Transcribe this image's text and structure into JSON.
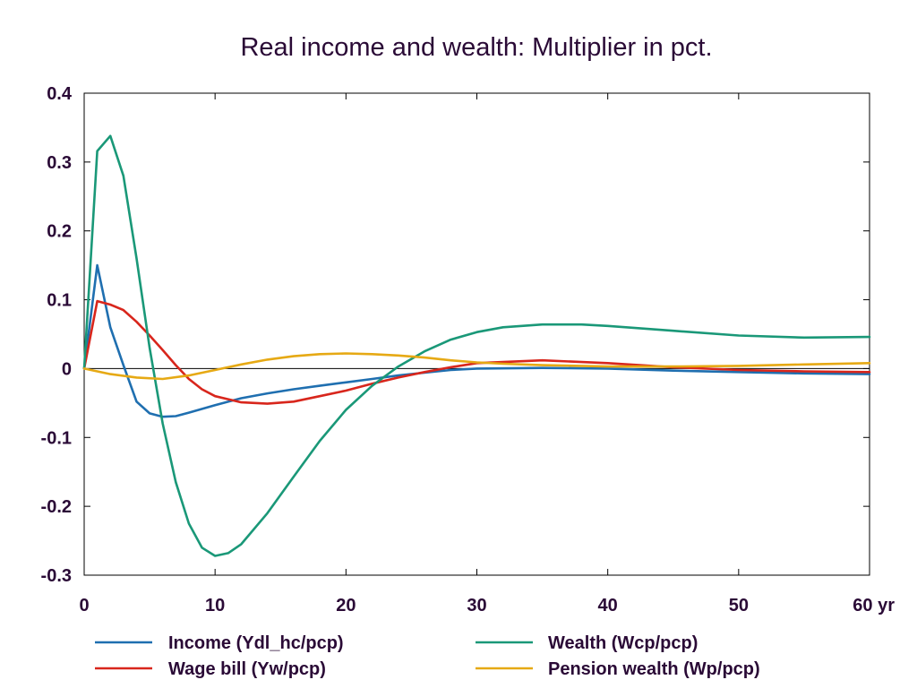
{
  "chart_data": {
    "type": "line",
    "title": "Real income and wealth: Multiplier in pct.",
    "xlabel": "",
    "ylabel": "",
    "xlim": [
      0,
      60
    ],
    "ylim": [
      -0.3,
      0.4
    ],
    "x_ticks": [
      0,
      10,
      20,
      30,
      40,
      50,
      60
    ],
    "x_tick_labels": [
      "0",
      "10",
      "20",
      "30",
      "40",
      "50",
      "60 yr"
    ],
    "y_ticks": [
      0.4,
      0.3,
      0.2,
      0.1,
      0,
      -0.1,
      -0.2,
      -0.3
    ],
    "y_tick_labels": [
      "0.4",
      "0.3",
      "0.2",
      "0.1",
      "0",
      "-0.1",
      "-0.2",
      "-0.3"
    ],
    "grid": false,
    "zero_line": true,
    "legend_position": "bottom",
    "series": [
      {
        "name": "Income (Ydl_hc/pcp)",
        "color": "#1f6fb0",
        "x": [
          0,
          1,
          2,
          3,
          4,
          5,
          6,
          7,
          8,
          10,
          12,
          14,
          16,
          18,
          20,
          22,
          24,
          26,
          28,
          30,
          35,
          40,
          45,
          50,
          55,
          60
        ],
        "y": [
          0,
          0.15,
          0.06,
          0.005,
          -0.048,
          -0.065,
          -0.07,
          -0.069,
          -0.064,
          -0.053,
          -0.043,
          -0.036,
          -0.03,
          -0.025,
          -0.02,
          -0.015,
          -0.01,
          -0.006,
          -0.002,
          0.0,
          0.001,
          0.0,
          -0.003,
          -0.005,
          -0.007,
          -0.008
        ]
      },
      {
        "name": "Wage bill (Yw/pcp)",
        "color": "#d8261c",
        "x": [
          0,
          1,
          2,
          3,
          4,
          5,
          6,
          7,
          8,
          9,
          10,
          12,
          14,
          16,
          18,
          20,
          22,
          24,
          26,
          28,
          30,
          35,
          40,
          45,
          50,
          55,
          60
        ],
        "y": [
          0,
          0.098,
          0.093,
          0.085,
          0.068,
          0.048,
          0.027,
          0.005,
          -0.015,
          -0.03,
          -0.04,
          -0.049,
          -0.051,
          -0.048,
          -0.04,
          -0.032,
          -0.022,
          -0.013,
          -0.005,
          0.002,
          0.008,
          0.012,
          0.008,
          0.002,
          -0.002,
          -0.004,
          -0.005
        ]
      },
      {
        "name": "Wealth (Wcp/pcp)",
        "color": "#1a9878",
        "x": [
          0,
          1,
          2,
          3,
          4,
          5,
          6,
          7,
          8,
          9,
          10,
          11,
          12,
          14,
          16,
          18,
          20,
          22,
          24,
          26,
          28,
          30,
          32,
          35,
          38,
          40,
          45,
          50,
          55,
          60
        ],
        "y": [
          0,
          0.316,
          0.338,
          0.28,
          0.16,
          0.03,
          -0.08,
          -0.165,
          -0.225,
          -0.26,
          -0.272,
          -0.268,
          -0.255,
          -0.21,
          -0.157,
          -0.105,
          -0.06,
          -0.025,
          0.003,
          0.025,
          0.042,
          0.053,
          0.06,
          0.064,
          0.064,
          0.062,
          0.055,
          0.048,
          0.045,
          0.046
        ]
      },
      {
        "name": "Pension wealth (Wp/pcp)",
        "color": "#e6a914",
        "x": [
          0,
          2,
          4,
          6,
          8,
          10,
          12,
          14,
          16,
          18,
          20,
          22,
          24,
          26,
          28,
          30,
          32,
          35,
          40,
          45,
          50,
          55,
          60
        ],
        "y": [
          0,
          -0.008,
          -0.013,
          -0.015,
          -0.01,
          -0.002,
          0.006,
          0.013,
          0.018,
          0.021,
          0.022,
          0.021,
          0.019,
          0.016,
          0.012,
          0.009,
          0.007,
          0.005,
          0.003,
          0.003,
          0.004,
          0.006,
          0.008
        ]
      }
    ]
  }
}
